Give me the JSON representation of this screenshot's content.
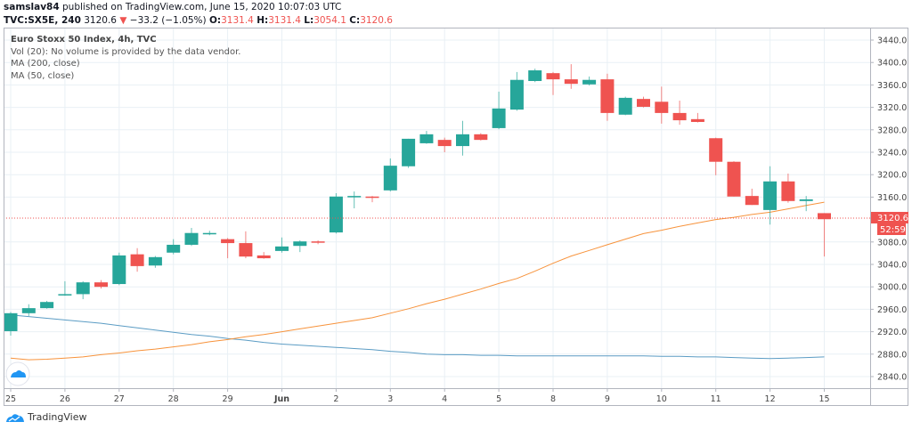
{
  "header": {
    "author": "samslav84",
    "published": "published on TradingView.com, June 15, 2020 10:07:03 UTC",
    "symbol": "TVC:SX5E, 240",
    "last": "3120.6",
    "change": "−33.2 (−1.05%)",
    "o_label": "O:",
    "o": "3131.4",
    "h_label": "H:",
    "h": "3131.4",
    "l_label": "L:",
    "l": "3054.1",
    "c_label": "C:",
    "c": "3120.6"
  },
  "legend": {
    "title": "Euro Stoxx 50 Index, 4h, TVC",
    "vol": "Vol (20): No volume is provided by the data vendor.",
    "ma200": "MA (200, close)",
    "ma50": "MA (50, close)"
  },
  "footer": {
    "brand": "TradingView"
  },
  "colors": {
    "up": "#26a69a",
    "down": "#ef5350",
    "ma200": "#5b9cc4",
    "ma50": "#f7933c",
    "grid": "#e9f0f5"
  },
  "chart_data": {
    "type": "candlestick",
    "timeframe": "4h",
    "bars_per_day": 3,
    "ylim": [
      2820,
      3460
    ],
    "grid": true,
    "y_ticks": [
      "3440.0",
      "3400.0",
      "3360.0",
      "3320.0",
      "3280.0",
      "3240.0",
      "3200.0",
      "3160.0",
      "3080.0",
      "3040.0",
      "3000.0",
      "2960.0",
      "2920.0",
      "2880.0",
      "2840.0"
    ],
    "y_tick_values": [
      3440,
      3400,
      3360,
      3320,
      3280,
      3240,
      3200,
      3160,
      3080,
      3040,
      3000,
      2960,
      2920,
      2880,
      2840
    ],
    "x_ticks": [
      "25",
      "26",
      "27",
      "28",
      "29",
      "Jun",
      "2",
      "3",
      "4",
      "5",
      "8",
      "9",
      "10",
      "11",
      "12",
      "15"
    ],
    "last_price_label": "3120.6",
    "countdown_label": "52:59",
    "candles": [
      [
        2921,
        2955,
        2913,
        2953
      ],
      [
        2953,
        2969,
        2948,
        2962
      ],
      [
        2962,
        2975,
        2961,
        2973
      ],
      [
        2985,
        3010,
        2984,
        2987
      ],
      [
        2987,
        3010,
        2978,
        3008
      ],
      [
        3008,
        3012,
        2997,
        3000
      ],
      [
        3005,
        3061,
        3003,
        3056
      ],
      [
        3058,
        3069,
        3027,
        3037
      ],
      [
        3038,
        3055,
        3034,
        3053
      ],
      [
        3061,
        3085,
        3058,
        3075
      ],
      [
        3075,
        3105,
        3073,
        3096
      ],
      [
        3094,
        3100,
        3092,
        3096
      ],
      [
        3085,
        3087,
        3051,
        3078
      ],
      [
        3078,
        3099,
        3051,
        3054
      ],
      [
        3056,
        3062,
        3050,
        3051
      ],
      [
        3064,
        3088,
        3061,
        3072
      ],
      [
        3073,
        3083,
        3062,
        3081
      ],
      [
        3081,
        3083,
        3076,
        3079
      ],
      [
        3097,
        3167,
        3095,
        3161
      ],
      [
        3161,
        3170,
        3140,
        3162
      ],
      [
        3161,
        3162,
        3151,
        3159
      ],
      [
        3172,
        3229,
        3170,
        3216
      ],
      [
        3215,
        3264,
        3212,
        3264
      ],
      [
        3256,
        3278,
        3255,
        3272
      ],
      [
        3262,
        3266,
        3240,
        3251
      ],
      [
        3251,
        3296,
        3234,
        3272
      ],
      [
        3272,
        3274,
        3261,
        3262
      ],
      [
        3283,
        3348,
        3281,
        3318
      ],
      [
        3316,
        3383,
        3314,
        3369
      ],
      [
        3367,
        3389,
        3365,
        3386
      ],
      [
        3381,
        3383,
        3342,
        3370
      ],
      [
        3370,
        3397,
        3353,
        3362
      ],
      [
        3361,
        3375,
        3359,
        3369
      ],
      [
        3370,
        3380,
        3296,
        3310
      ],
      [
        3307,
        3339,
        3306,
        3337
      ],
      [
        3335,
        3339,
        3320,
        3321
      ],
      [
        3330,
        3357,
        3291,
        3310
      ],
      [
        3310,
        3332,
        3289,
        3297
      ],
      [
        3299,
        3310,
        3293,
        3294
      ],
      [
        3265,
        3266,
        3199,
        3223
      ],
      [
        3223,
        3224,
        3161,
        3161
      ],
      [
        3162,
        3175,
        3146,
        3146
      ],
      [
        3137,
        3215,
        3111,
        3188
      ],
      [
        3188,
        3202,
        3150,
        3153
      ],
      [
        3153,
        3162,
        3135,
        3156
      ],
      [
        3131.4,
        3131.4,
        3054.1,
        3120.6
      ]
    ],
    "candle_fields": [
      "open",
      "high",
      "low",
      "close"
    ],
    "series": [
      {
        "name": "MA (200, close)",
        "values": [
          2950,
          2947,
          2944,
          2941,
          2938,
          2935,
          2931,
          2927,
          2923,
          2919,
          2915,
          2912,
          2908,
          2905,
          2901,
          2898,
          2896,
          2894,
          2892,
          2890,
          2888,
          2885,
          2883,
          2880,
          2879,
          2879,
          2878,
          2878,
          2877,
          2877,
          2877,
          2877,
          2877,
          2877,
          2877,
          2877,
          2876,
          2876,
          2875,
          2875,
          2874,
          2873,
          2872,
          2873,
          2874,
          2875
        ]
      },
      {
        "name": "MA (50, close)",
        "values": [
          2873,
          2870,
          2871,
          2873,
          2875,
          2879,
          2882,
          2886,
          2889,
          2893,
          2897,
          2902,
          2906,
          2911,
          2915,
          2920,
          2925,
          2930,
          2935,
          2940,
          2945,
          2953,
          2961,
          2970,
          2978,
          2987,
          2996,
          3006,
          3015,
          3028,
          3042,
          3055,
          3065,
          3075,
          3085,
          3095,
          3101,
          3108,
          3114,
          3120,
          3124,
          3129,
          3133,
          3139,
          3145,
          3151
        ]
      }
    ]
  }
}
